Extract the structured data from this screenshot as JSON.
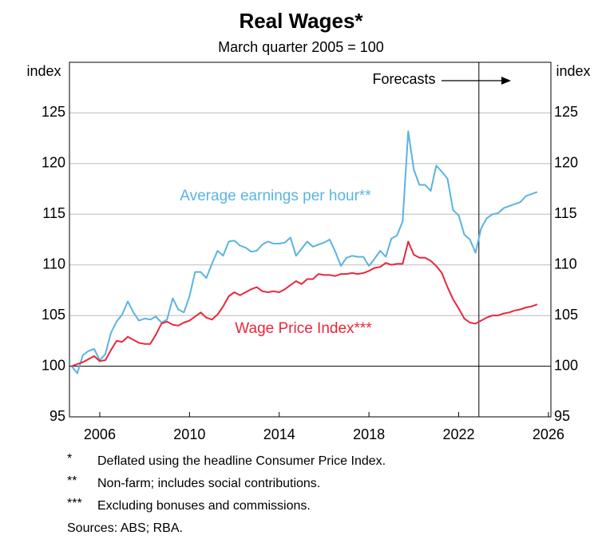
{
  "chart_data": {
    "type": "line",
    "title": "Real Wages*",
    "subtitle": "March quarter 2005 = 100",
    "y_label_left": "index",
    "y_label_right": "index",
    "annotation": "Forecasts",
    "forecast_start_x": 2023.4,
    "xlim": [
      2005.15,
      2026.61
    ],
    "xticks": [
      {
        "value": 2006.5,
        "label": "2006"
      },
      {
        "value": 2010.5,
        "label": "2010"
      },
      {
        "value": 2014.5,
        "label": "2014"
      },
      {
        "value": 2018.5,
        "label": "2018"
      },
      {
        "value": 2022.5,
        "label": "2022"
      },
      {
        "value": 2026.5,
        "label": "2026"
      }
    ],
    "ylim": [
      95,
      130
    ],
    "yticks": [
      95,
      100,
      105,
      110,
      115,
      120,
      125
    ],
    "y2lim": [
      95,
      130
    ],
    "y2ticks": [
      95,
      100,
      105,
      110,
      115,
      120,
      125
    ],
    "baseline": 100,
    "grid": true,
    "x": [
      2005.25,
      2005.5,
      2005.75,
      2006,
      2006.25,
      2006.5,
      2006.75,
      2007,
      2007.25,
      2007.5,
      2007.75,
      2008,
      2008.25,
      2008.5,
      2008.75,
      2009,
      2009.25,
      2009.5,
      2009.75,
      2010,
      2010.25,
      2010.5,
      2010.75,
      2011,
      2011.25,
      2011.5,
      2011.75,
      2012,
      2012.25,
      2012.5,
      2012.75,
      2013,
      2013.25,
      2013.5,
      2013.75,
      2014,
      2014.25,
      2014.5,
      2014.75,
      2015,
      2015.25,
      2015.5,
      2015.75,
      2016,
      2016.25,
      2016.5,
      2016.75,
      2017,
      2017.25,
      2017.5,
      2017.75,
      2018,
      2018.25,
      2018.5,
      2018.75,
      2019,
      2019.25,
      2019.5,
      2019.75,
      2020,
      2020.25,
      2020.5,
      2020.75,
      2021,
      2021.25,
      2021.5,
      2021.75,
      2022,
      2022.25,
      2022.5,
      2022.75,
      2023,
      2023.25,
      2023.5,
      2023.75,
      2024,
      2024.25,
      2024.5,
      2024.75,
      2025,
      2025.25,
      2025.5,
      2025.75,
      2026
    ],
    "series": [
      {
        "name": "Average earnings per hour**",
        "color": "#5ab4e0",
        "values": [
          100,
          99.3,
          101.1,
          101.5,
          101.7,
          100.6,
          101.2,
          103.3,
          104.4,
          105.1,
          106.4,
          105.3,
          104.5,
          104.7,
          104.6,
          104.9,
          104.3,
          104.6,
          106.7,
          105.6,
          105.3,
          106.9,
          109.3,
          109.3,
          108.7,
          110.1,
          111.4,
          110.9,
          112.3,
          112.4,
          111.9,
          111.7,
          111.3,
          111.4,
          112.0,
          112.3,
          112.1,
          112.1,
          112.2,
          112.7,
          110.9,
          111.6,
          112.3,
          111.8,
          112.0,
          112.2,
          112.5,
          111.3,
          109.9,
          110.7,
          110.9,
          110.8,
          110.8,
          109.9,
          110.6,
          111.4,
          110.8,
          112.6,
          112.9,
          114.3,
          123.2,
          119.4,
          117.9,
          117.9,
          117.3,
          119.8,
          119.2,
          118.5,
          115.4,
          114.9,
          113.0,
          112.5,
          111.2,
          113.6,
          114.6,
          115.0,
          115.1,
          115.6,
          115.8,
          116.0,
          116.2,
          116.8,
          117.0,
          117.2
        ]
      },
      {
        "name": "Wage Price Index***",
        "color": "#e8283c",
        "values": [
          100,
          100.2,
          100.4,
          100.7,
          101.0,
          100.5,
          100.6,
          101.6,
          102.5,
          102.4,
          102.9,
          102.6,
          102.3,
          102.2,
          102.2,
          103.1,
          104.2,
          104.4,
          104.1,
          104.0,
          104.3,
          104.5,
          104.9,
          105.3,
          104.8,
          104.6,
          105.1,
          105.9,
          106.9,
          107.3,
          107.0,
          107.3,
          107.6,
          107.8,
          107.4,
          107.3,
          107.4,
          107.3,
          107.6,
          108.0,
          108.4,
          108.1,
          108.6,
          108.6,
          109.1,
          109.0,
          109.0,
          108.9,
          109.1,
          109.1,
          109.2,
          109.1,
          109.2,
          109.4,
          109.7,
          109.8,
          110.2,
          110.0,
          110.1,
          110.1,
          112.3,
          111.0,
          110.7,
          110.7,
          110.4,
          109.9,
          109.2,
          107.8,
          106.6,
          105.7,
          104.7,
          104.3,
          104.2,
          104.5,
          104.8,
          105.0,
          105.0,
          105.2,
          105.3,
          105.5,
          105.6,
          105.8,
          105.9,
          106.1
        ]
      }
    ],
    "footnotes": [
      {
        "marker": "*",
        "text": "Deflated using the headline Consumer Price Index."
      },
      {
        "marker": "**",
        "text": "Non-farm; includes social contributions."
      },
      {
        "marker": "***",
        "text": "Excluding bonuses and commissions."
      }
    ],
    "sources": "Sources: ABS; RBA."
  }
}
